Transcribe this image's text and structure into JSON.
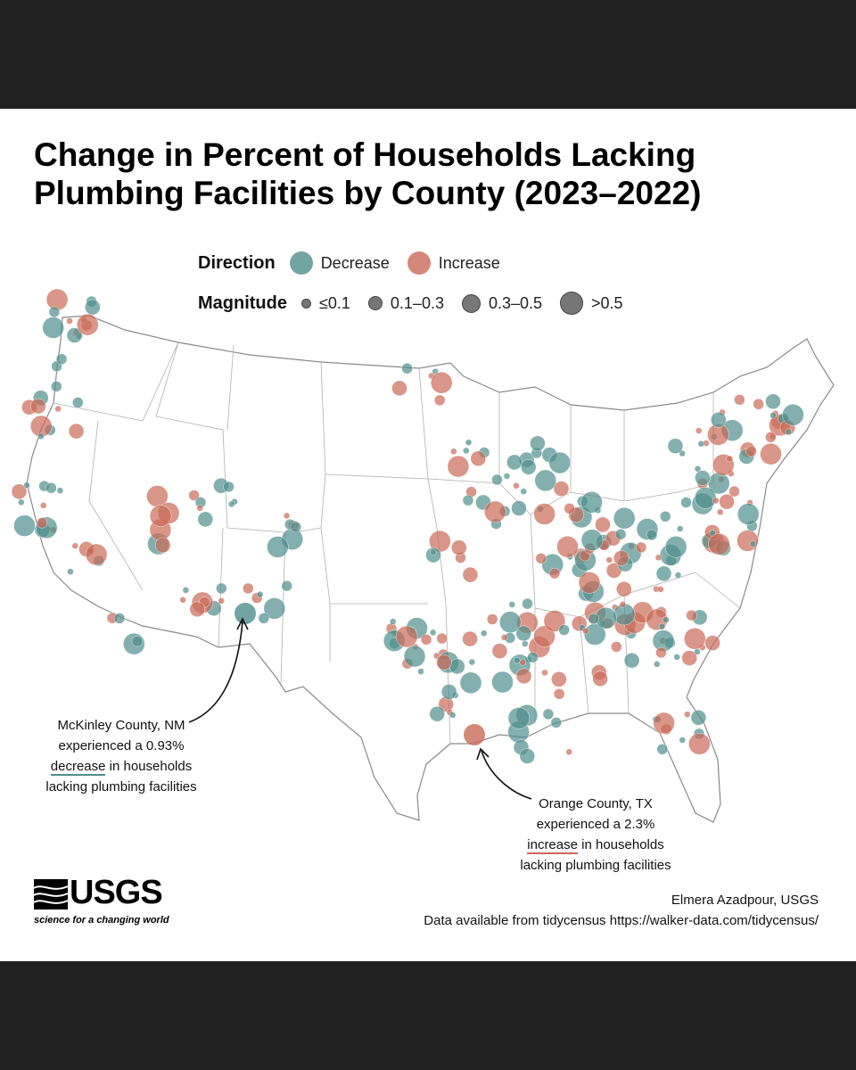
{
  "title": "Change in Percent of Households Lacking Plumbing Facilities by County (2023–2022)",
  "legend": {
    "direction_label": "Direction",
    "directions": [
      {
        "label": "Decrease",
        "color": "#4f8f8b"
      },
      {
        "label": "Increase",
        "color": "#c96a57"
      }
    ],
    "magnitude_label": "Magnitude",
    "magnitudes": [
      {
        "label": "≤0.1"
      },
      {
        "label": "0.1–0.3"
      },
      {
        "label": "0.3–0.5"
      },
      {
        "label": ">0.5"
      }
    ]
  },
  "callouts": {
    "mckinley": {
      "line1": "McKinley County, NM",
      "line2": "experienced a 0.93%",
      "keyword": "decrease",
      "rest3": " in households",
      "line4": "lacking plumbing facilities"
    },
    "orange": {
      "line1": "Orange County, TX",
      "line2": "experienced a 2.3%",
      "keyword": "increase",
      "rest3": " in households",
      "line4": "lacking plumbing facilities"
    }
  },
  "logo": {
    "name": "USGS",
    "tagline": "science for a changing world"
  },
  "credit": {
    "author": "Elmera Azadpour, USGS",
    "source": "Data available from tidycensus https://walker-data.com/tidycensus/"
  },
  "colors": {
    "decrease": "#4f8f8b",
    "increase": "#c96a57",
    "background": "#212121",
    "map_border": "#888888"
  }
}
